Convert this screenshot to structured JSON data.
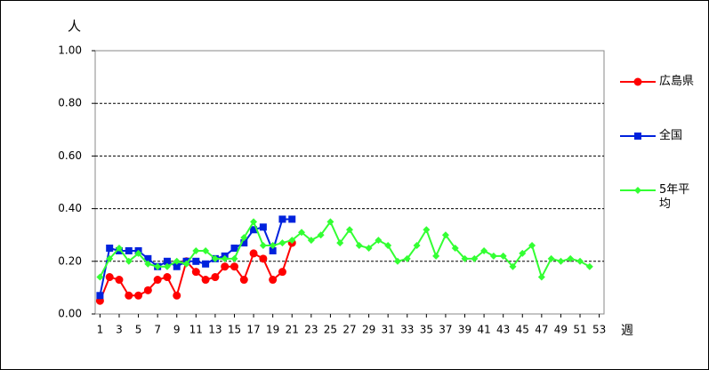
{
  "chart_data": {
    "type": "line",
    "y_label": "人",
    "x_label": "週",
    "x": [
      1,
      2,
      3,
      4,
      5,
      6,
      7,
      8,
      9,
      10,
      11,
      12,
      13,
      14,
      15,
      16,
      17,
      18,
      19,
      20,
      21,
      22,
      23,
      24,
      25,
      26,
      27,
      28,
      29,
      30,
      31,
      32,
      33,
      34,
      35,
      36,
      37,
      38,
      39,
      40,
      41,
      42,
      43,
      44,
      45,
      46,
      47,
      48,
      49,
      50,
      51,
      52,
      53
    ],
    "xlim": [
      0.5,
      53.5
    ],
    "xticks": [
      1,
      3,
      5,
      7,
      9,
      11,
      13,
      15,
      17,
      19,
      21,
      23,
      25,
      27,
      29,
      31,
      33,
      35,
      37,
      39,
      41,
      43,
      45,
      47,
      49,
      51,
      53
    ],
    "ylim": [
      0,
      1
    ],
    "yticks": [
      {
        "value": 0,
        "label": "0.00"
      },
      {
        "value": 0.2,
        "label": "0.20"
      },
      {
        "value": 0.4,
        "label": "0.40"
      },
      {
        "value": 0.6,
        "label": "0.60"
      },
      {
        "value": 0.8,
        "label": "0.80"
      },
      {
        "value": 1,
        "label": "1.00"
      }
    ],
    "grid": true,
    "legend": "right",
    "series": [
      {
        "name": "広島県",
        "color": "#ff0000",
        "marker": "circle",
        "values": [
          0.05,
          0.14,
          0.13,
          0.07,
          0.07,
          0.09,
          0.13,
          0.14,
          0.07,
          0.2,
          0.16,
          0.13,
          0.14,
          0.18,
          0.18,
          0.13,
          0.23,
          0.21,
          0.13,
          0.16,
          0.27,
          null,
          null,
          null,
          null,
          null,
          null,
          null,
          null,
          null,
          null,
          null,
          null,
          null,
          null,
          null,
          null,
          null,
          null,
          null,
          null,
          null,
          null,
          null,
          null,
          null,
          null,
          null,
          null,
          null,
          null,
          null,
          null
        ]
      },
      {
        "name": "全国",
        "color": "#0022dd",
        "marker": "square",
        "values": [
          0.07,
          0.25,
          0.24,
          0.24,
          0.24,
          0.21,
          0.18,
          0.2,
          0.18,
          0.2,
          0.2,
          0.19,
          0.21,
          0.22,
          0.25,
          0.27,
          0.32,
          0.33,
          0.24,
          0.36,
          0.36,
          null,
          null,
          null,
          null,
          null,
          null,
          null,
          null,
          null,
          null,
          null,
          null,
          null,
          null,
          null,
          null,
          null,
          null,
          null,
          null,
          null,
          null,
          null,
          null,
          null,
          null,
          null,
          null,
          null,
          null,
          null,
          null
        ]
      },
      {
        "name": "5年平均",
        "color": "#33ff33",
        "marker": "diamond",
        "values": [
          0.14,
          0.21,
          0.25,
          0.2,
          0.23,
          0.19,
          0.18,
          0.18,
          0.2,
          0.19,
          0.24,
          0.24,
          0.21,
          0.21,
          0.21,
          0.29,
          0.35,
          0.26,
          0.26,
          0.27,
          0.28,
          0.31,
          0.28,
          0.3,
          0.35,
          0.27,
          0.32,
          0.26,
          0.25,
          0.28,
          0.26,
          0.2,
          0.21,
          0.26,
          0.32,
          0.22,
          0.3,
          0.25,
          0.21,
          0.21,
          0.24,
          0.22,
          0.22,
          0.18,
          0.23,
          0.26,
          0.14,
          0.21,
          0.2,
          0.21,
          0.2,
          0.18,
          null
        ]
      }
    ]
  }
}
